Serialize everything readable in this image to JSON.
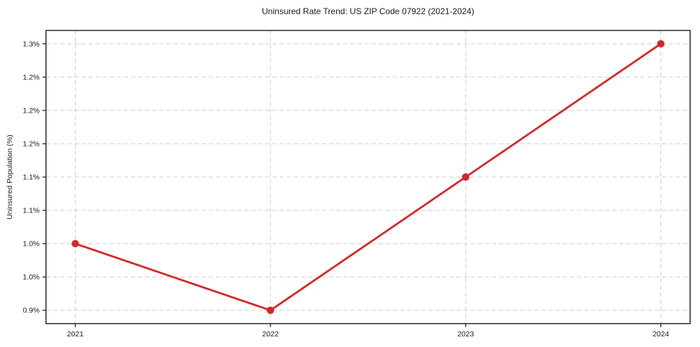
{
  "chart_data": {
    "type": "line",
    "title": "Uninsured Rate Trend: US ZIP Code 07922 (2021-2024)",
    "xlabel": "",
    "ylabel": "Uninsured Population (%)",
    "x": [
      2021,
      2022,
      2023,
      2024
    ],
    "x_tick_labels": [
      "2021",
      "2022",
      "2023",
      "2024"
    ],
    "series": [
      {
        "name": "Uninsured Population (%)",
        "values": [
          1.0,
          0.9,
          1.1,
          1.3
        ]
      }
    ],
    "y_ticks": [
      0.9,
      0.95,
      1.0,
      1.05,
      1.1,
      1.15,
      1.2,
      1.25,
      1.3
    ],
    "y_tick_labels": [
      "0.9%",
      "1.0%",
      "1.0%",
      "1.1%",
      "1.1%",
      "1.2%",
      "1.2%",
      "1.2%",
      "1.3%"
    ],
    "xlim": [
      2020.85,
      2024.15
    ],
    "ylim": [
      0.88,
      1.32
    ],
    "grid": true,
    "legend_position": "none",
    "line_color": "#d62728",
    "marker_color": "#d62728",
    "grid_color": "#cccccc",
    "axis_color": "#1a1a1a"
  }
}
